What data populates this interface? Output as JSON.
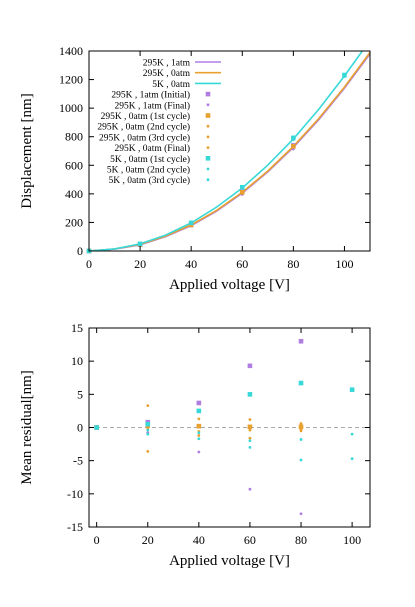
{
  "chart_data": [
    {
      "type": "line",
      "xlabel": "Applied voltage [V]",
      "ylabel": "Displacement [nm]",
      "xlim": [
        0,
        110
      ],
      "ylim": [
        0,
        1400
      ],
      "xticks": [
        0,
        20,
        40,
        60,
        80,
        100
      ],
      "xtick_labels": [
        "0",
        "20",
        "40",
        "60",
        "80",
        "100"
      ],
      "yticks": [
        0,
        200,
        400,
        600,
        800,
        1000,
        1200,
        1400
      ],
      "ytick_labels": [
        "0",
        "200",
        "400",
        "600",
        "800",
        "1000",
        "1200",
        "1400"
      ],
      "grid": false,
      "legend_position": "top-left",
      "series": [
        {
          "name": "295K , 1atm",
          "kind": "line",
          "color": "#b07ee0",
          "x": [
            0,
            10,
            20,
            30,
            40,
            50,
            60,
            70,
            80,
            90,
            100,
            110
          ],
          "y": [
            0,
            13,
            43,
            101,
            178,
            279,
            405,
            554,
            726,
            920,
            1140,
            1380
          ]
        },
        {
          "name": "295K , 0atm",
          "kind": "line",
          "color": "#e8a030",
          "x": [
            0,
            10,
            20,
            30,
            40,
            50,
            60,
            70,
            80,
            90,
            100,
            110
          ],
          "y": [
            0,
            14,
            46,
            104,
            183,
            285,
            411,
            560,
            733,
            928,
            1148,
            1390
          ]
        },
        {
          "name": "5K , 0atm",
          "kind": "line",
          "color": "#38d8d8",
          "x": [
            0,
            10,
            20,
            30,
            40,
            50,
            60,
            70,
            80,
            90,
            100,
            107
          ],
          "y": [
            0,
            15,
            50,
            111,
            197,
            308,
            441,
            601,
            785,
            993,
            1226,
            1400
          ]
        },
        {
          "name": "295K , 1atm (Initial)",
          "kind": "points",
          "marker": "square",
          "color": "#b07ee0",
          "x": [
            0,
            20,
            40,
            60,
            80
          ],
          "y": [
            0,
            44,
            182,
            414,
            739
          ]
        },
        {
          "name": "295K , 1atm (Final)",
          "kind": "points",
          "marker": "dot",
          "color": "#b07ee0",
          "x": [
            0,
            20,
            40,
            60,
            80
          ],
          "y": [
            0,
            44,
            174,
            396,
            713
          ]
        },
        {
          "name": "295K , 0atm (1st cycle)",
          "kind": "points",
          "marker": "square",
          "color": "#e8a030",
          "x": [
            0,
            20,
            40,
            60,
            80
          ],
          "y": [
            0,
            46,
            183,
            411,
            733
          ]
        },
        {
          "name": "295K , 0atm (2nd cycle)",
          "kind": "points",
          "marker": "dot",
          "color": "#e8a030",
          "x": [
            0,
            20,
            40,
            60,
            80
          ],
          "y": [
            0,
            47,
            184,
            412,
            734
          ]
        },
        {
          "name": "295K , 0atm (3rd cycle)",
          "kind": "points",
          "marker": "dot",
          "color": "#e8a030",
          "x": [
            0,
            20,
            40,
            60,
            80
          ],
          "y": [
            0,
            46,
            183,
            410,
            732
          ]
        },
        {
          "name": "295K , 0atm (Final)",
          "kind": "points",
          "marker": "dot",
          "color": "#e8a030",
          "x": [
            0,
            20,
            40,
            60,
            80
          ],
          "y": [
            0,
            45,
            182,
            410,
            733
          ]
        },
        {
          "name": "5K , 0atm (1st cycle)",
          "kind": "points",
          "marker": "square",
          "color": "#38d8d8",
          "x": [
            0,
            20,
            40,
            60,
            80,
            100
          ],
          "y": [
            0,
            50,
            197,
            446,
            792,
            1232
          ]
        },
        {
          "name": "5K , 0atm (2nd cycle)",
          "kind": "points",
          "marker": "dot",
          "color": "#38d8d8",
          "x": [
            0,
            20,
            40,
            60,
            80,
            100
          ],
          "y": [
            0,
            50,
            196,
            441,
            784,
            1226
          ]
        },
        {
          "name": "5K , 0atm (3rd cycle)",
          "kind": "points",
          "marker": "dot",
          "color": "#38d8d8",
          "x": [
            0,
            20,
            40,
            60,
            80,
            100
          ],
          "y": [
            0,
            49,
            196,
            440,
            780,
            1221
          ]
        }
      ]
    },
    {
      "type": "scatter",
      "xlabel": "Applied voltage [V]",
      "ylabel": "Mean residual[nm]",
      "xlim": [
        -3,
        107
      ],
      "ylim": [
        -15,
        15
      ],
      "xticks": [
        0,
        20,
        40,
        60,
        80,
        100
      ],
      "xtick_labels": [
        "0",
        "20",
        "40",
        "60",
        "80",
        "100"
      ],
      "yticks": [
        -15,
        -10,
        -5,
        0,
        5,
        10,
        15
      ],
      "ytick_labels": [
        "-15",
        "-10",
        "-5",
        "0",
        "5",
        "10",
        "15"
      ],
      "grid": false,
      "zero_line": true,
      "series": [
        {
          "name": "295K , 1atm (Initial)",
          "marker": "square",
          "color": "#b07ee0",
          "x": [
            0,
            20,
            40,
            60,
            80
          ],
          "y": [
            0,
            0.8,
            3.7,
            9.3,
            13.0
          ]
        },
        {
          "name": "295K , 1atm (Final)",
          "marker": "dot",
          "color": "#b07ee0",
          "x": [
            0,
            20,
            40,
            60,
            80
          ],
          "y": [
            0,
            -0.8,
            -3.7,
            -9.3,
            -13.0
          ]
        },
        {
          "name": "295K , 0atm (1st cycle)",
          "marker": "square",
          "color": "#e8a030",
          "x": [
            0,
            20,
            40,
            60,
            80
          ],
          "y": [
            0,
            0.3,
            0.2,
            0.1,
            0.1
          ]
        },
        {
          "name": "295K , 0atm (2nd cycle)",
          "marker": "dot",
          "color": "#e8a030",
          "x": [
            0,
            20,
            40,
            60,
            80
          ],
          "y": [
            0,
            3.3,
            1.3,
            1.2,
            0.6
          ]
        },
        {
          "name": "295K , 0atm (3rd cycle)",
          "marker": "dot",
          "color": "#e8a030",
          "x": [
            0,
            20,
            40,
            60,
            80
          ],
          "y": [
            0,
            -3.6,
            -0.6,
            -1.6,
            -0.5
          ]
        },
        {
          "name": "295K , 0atm (Final)",
          "marker": "dot",
          "color": "#e8a030",
          "x": [
            0,
            20,
            40,
            60,
            80
          ],
          "y": [
            0,
            -0.2,
            -1.2,
            -0.4,
            -0.3
          ]
        },
        {
          "name": "5K , 0atm (1st cycle)",
          "marker": "square",
          "color": "#38d8d8",
          "x": [
            0,
            20,
            40,
            60,
            80,
            100
          ],
          "y": [
            0,
            0.5,
            2.5,
            5.0,
            6.7,
            5.7
          ]
        },
        {
          "name": "5K , 0atm (2nd cycle)",
          "marker": "dot",
          "color": "#38d8d8",
          "x": [
            0,
            20,
            40,
            60,
            80,
            100
          ],
          "y": [
            0,
            -0.4,
            -0.8,
            -3.0,
            -1.8,
            -1.0
          ]
        },
        {
          "name": "5K , 0atm (3rd cycle)",
          "marker": "dot",
          "color": "#38d8d8",
          "x": [
            0,
            20,
            40,
            60,
            80,
            100
          ],
          "y": [
            0,
            -1.0,
            -1.7,
            -2.0,
            -4.9,
            -4.7
          ]
        }
      ]
    }
  ]
}
